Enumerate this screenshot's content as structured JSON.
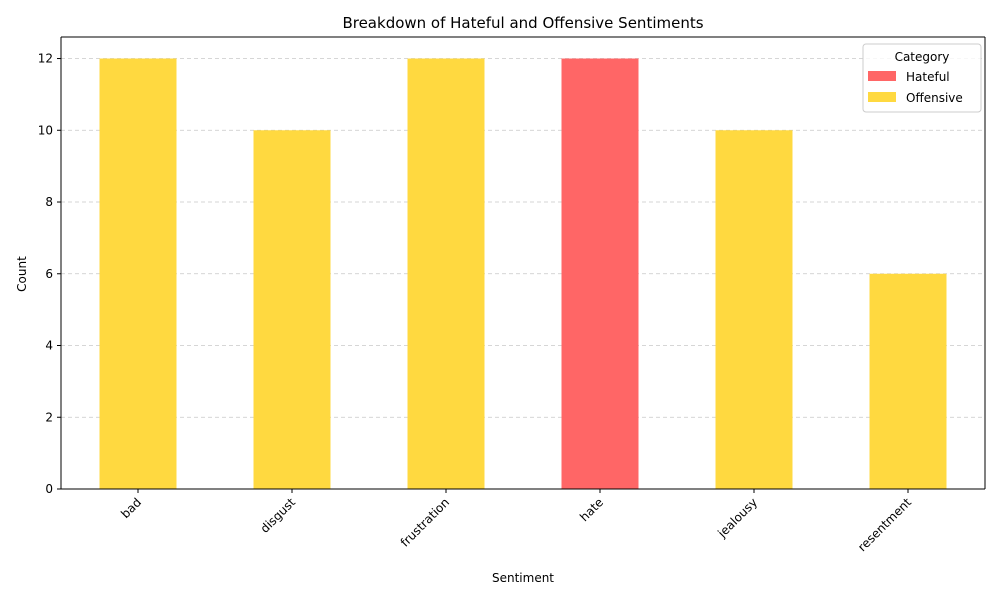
{
  "chart_data": {
    "type": "bar",
    "title": "Breakdown of Hateful and Offensive Sentiments",
    "xlabel": "Sentiment",
    "ylabel": "Count",
    "categories": [
      "bad",
      "disgust",
      "frustration",
      "hate",
      "jealousy",
      "resentment"
    ],
    "series": [
      {
        "name": "Hateful",
        "color": "#ff6666",
        "values": [
          0,
          0,
          0,
          12,
          0,
          0
        ]
      },
      {
        "name": "Offensive",
        "color": "#ffd940",
        "values": [
          12,
          10,
          12,
          0,
          10,
          6
        ]
      }
    ],
    "stacked": true,
    "ylim": [
      0,
      12.6
    ],
    "yticks": [
      0,
      2,
      4,
      6,
      8,
      10,
      12
    ],
    "grid": {
      "y": true,
      "style": "dashed"
    },
    "legend": {
      "title": "Category",
      "position": "top-right"
    },
    "tick_rotation": 45
  }
}
